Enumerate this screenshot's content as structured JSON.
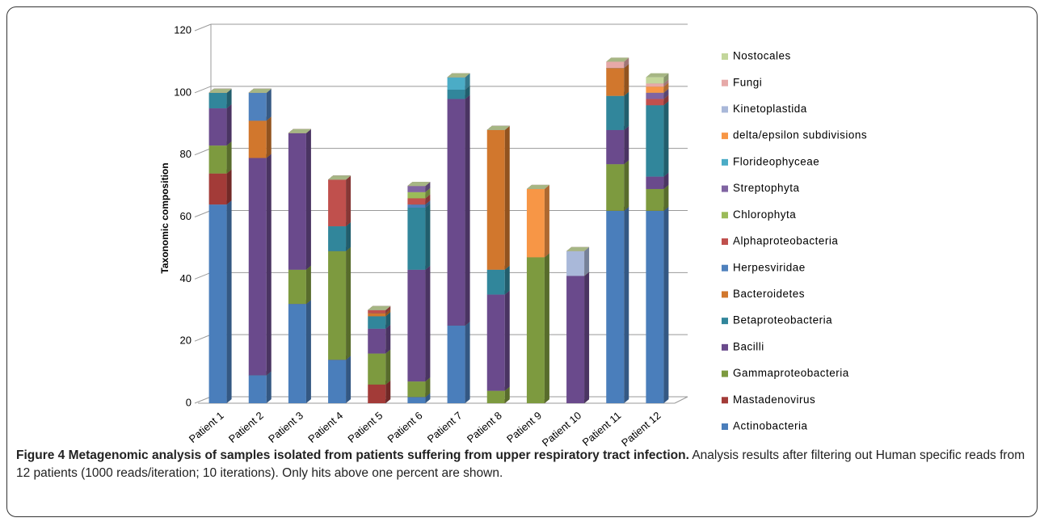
{
  "chart_data": {
    "type": "bar3d_stacked",
    "ylabel": "Taxonomic composition",
    "categories": [
      "Patient 1",
      "Patient 2",
      "Patient 3",
      "Patient 4",
      "Patient 5",
      "Patient 6",
      "Patient 7",
      "Patient 8",
      "Patient 9",
      "Patient 10",
      "Patient 11",
      "Patient 12"
    ],
    "ylim": [
      0,
      120
    ],
    "yticks": [
      0,
      20,
      40,
      60,
      80,
      100,
      120
    ],
    "grid": true,
    "legend": "right",
    "series": [
      {
        "name": "Actinobacteria",
        "color": "#4a7ebb",
        "values": [
          64,
          9,
          32,
          14,
          0,
          2,
          25,
          0,
          0,
          0,
          62,
          62
        ]
      },
      {
        "name": "Mastadenovirus",
        "color": "#a33b38",
        "values": [
          10,
          0,
          0,
          0,
          6,
          0,
          0,
          0,
          0,
          0,
          0,
          0
        ]
      },
      {
        "name": "Gammaproteobacteria",
        "color": "#7d9a3f",
        "values": [
          9,
          0,
          11,
          35,
          10,
          5,
          0,
          4,
          47,
          0,
          15,
          7
        ]
      },
      {
        "name": "Bacilli",
        "color": "#6a4a8c",
        "values": [
          12,
          70,
          44,
          0,
          8,
          36,
          73,
          31,
          0,
          41,
          11,
          4
        ]
      },
      {
        "name": "Betaproteobacteria",
        "color": "#31869b",
        "values": [
          5,
          0,
          0,
          8,
          4,
          20,
          3,
          8,
          0,
          0,
          11,
          23
        ]
      },
      {
        "name": "Bacteroidetes",
        "color": "#d1772d",
        "values": [
          0,
          12,
          0,
          0,
          1,
          0,
          0,
          45,
          0,
          0,
          9,
          0
        ]
      },
      {
        "name": "Herpesviridae",
        "color": "#4f81bd",
        "values": [
          0,
          9,
          0,
          0,
          0,
          1,
          0,
          0,
          0,
          0,
          0,
          0
        ]
      },
      {
        "name": "Alphaproteobacteria",
        "color": "#c0504d",
        "values": [
          0,
          0,
          0,
          15,
          1,
          2,
          0,
          0,
          0,
          0,
          0,
          2
        ]
      },
      {
        "name": "Chlorophyta",
        "color": "#9bbb59",
        "values": [
          0,
          0,
          0,
          0,
          0,
          2,
          0,
          0,
          0,
          0,
          0,
          0
        ]
      },
      {
        "name": "Streptophyta",
        "color": "#8064a2",
        "values": [
          0,
          0,
          0,
          0,
          0,
          2,
          0,
          0,
          0,
          0,
          0,
          2
        ]
      },
      {
        "name": "Florideophyceae",
        "color": "#4bacc6",
        "values": [
          0,
          0,
          0,
          0,
          0,
          0,
          4,
          0,
          0,
          0,
          0,
          0
        ]
      },
      {
        "name": "delta/epsilon subdivisions",
        "color": "#f79646",
        "values": [
          0,
          0,
          0,
          0,
          0,
          0,
          0,
          0,
          22,
          0,
          0,
          2
        ]
      },
      {
        "name": "Kinetoplastida",
        "color": "#a9b8d9",
        "values": [
          0,
          0,
          0,
          0,
          0,
          0,
          0,
          0,
          0,
          8,
          0,
          0
        ]
      },
      {
        "name": "Fungi",
        "color": "#e6a9a8",
        "values": [
          0,
          0,
          0,
          0,
          0,
          0,
          0,
          0,
          0,
          0,
          2,
          1
        ]
      },
      {
        "name": "Nostocales",
        "color": "#c3d69b",
        "values": [
          0,
          0,
          0,
          0,
          0,
          0,
          0,
          0,
          0,
          0,
          0,
          2
        ]
      }
    ]
  },
  "caption": {
    "title": "Figure 4 Metagenomic analysis of samples isolated from patients suffering from upper respiratory tract infection.",
    "text": "Analysis results after filtering out Human specific reads from 12 patients (1000 reads/iteration; 10 iterations). Only hits above one percent are shown."
  }
}
